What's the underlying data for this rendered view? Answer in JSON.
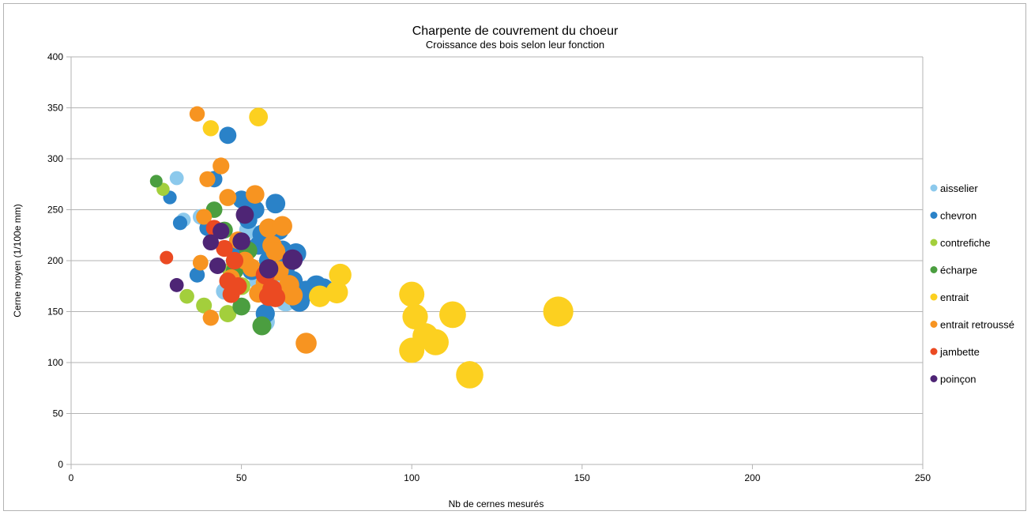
{
  "chart_data": {
    "type": "scatter",
    "title": "Charpente de couvrement du choeur",
    "subtitle": "Croissance des bois selon leur fonction",
    "xlabel": "Nb de cernes mesurés",
    "ylabel": "Cerne moyen (1/100e mm)",
    "xlim": [
      0,
      250
    ],
    "ylim": [
      0,
      400
    ],
    "xticks": [
      "0",
      "50",
      "100",
      "150",
      "200",
      "250"
    ],
    "yticks": [
      "0",
      "50",
      "100",
      "150",
      "200",
      "250",
      "300",
      "350",
      "400"
    ],
    "grid": "horizontal",
    "legend_position": "right",
    "bubble_size_encodes": "x",
    "series": [
      {
        "name": "aisselier",
        "color": "#8cc9ec",
        "points": [
          [
            31,
            281
          ],
          [
            33,
            240
          ],
          [
            38,
            243
          ],
          [
            45,
            170
          ],
          [
            48,
            195
          ],
          [
            52,
            230
          ],
          [
            55,
            180
          ],
          [
            57,
            140
          ],
          [
            60,
            175
          ],
          [
            63,
            160
          ]
        ]
      },
      {
        "name": "chevron",
        "color": "#2a82c8",
        "points": [
          [
            29,
            262
          ],
          [
            32,
            237
          ],
          [
            37,
            186
          ],
          [
            40,
            232
          ],
          [
            42,
            280
          ],
          [
            46,
            323
          ],
          [
            48,
            213
          ],
          [
            50,
            260
          ],
          [
            52,
            240
          ],
          [
            53,
            190
          ],
          [
            55,
            215
          ],
          [
            57,
            148
          ],
          [
            58,
            175
          ],
          [
            60,
            256
          ],
          [
            61,
            230
          ],
          [
            62,
            210
          ],
          [
            63,
            195
          ],
          [
            65,
            180
          ],
          [
            66,
            207
          ],
          [
            67,
            160
          ],
          [
            69,
            170
          ],
          [
            72,
            175
          ],
          [
            74,
            172
          ],
          [
            58,
            200
          ],
          [
            56,
            226
          ],
          [
            54,
            250
          ]
        ]
      },
      {
        "name": "contrefiche",
        "color": "#a3cf3c",
        "points": [
          [
            27,
            270
          ],
          [
            34,
            165
          ],
          [
            39,
            156
          ],
          [
            46,
            148
          ],
          [
            50,
            175
          ],
          [
            47,
            190
          ]
        ]
      },
      {
        "name": "écharpe",
        "color": "#4b9e40",
        "points": [
          [
            25,
            278
          ],
          [
            42,
            250
          ],
          [
            45,
            230
          ],
          [
            48,
            190
          ],
          [
            50,
            155
          ],
          [
            56,
            136
          ],
          [
            52,
            210
          ]
        ]
      },
      {
        "name": "entrait",
        "color": "#fcd020",
        "points": [
          [
            41,
            330
          ],
          [
            55,
            341
          ],
          [
            73,
            165
          ],
          [
            78,
            169
          ],
          [
            79,
            186
          ],
          [
            100,
            167
          ],
          [
            101,
            145
          ],
          [
            100,
            112
          ],
          [
            104,
            126
          ],
          [
            107,
            120
          ],
          [
            112,
            147
          ],
          [
            117,
            88
          ],
          [
            143,
            150
          ]
        ]
      },
      {
        "name": "entrait retroussé",
        "color": "#f79421",
        "points": [
          [
            37,
            344
          ],
          [
            38,
            198
          ],
          [
            40,
            280
          ],
          [
            41,
            144
          ],
          [
            44,
            293
          ],
          [
            46,
            262
          ],
          [
            47,
            183
          ],
          [
            49,
            220
          ],
          [
            51,
            200
          ],
          [
            53,
            193
          ],
          [
            54,
            265
          ],
          [
            55,
            168
          ],
          [
            57,
            178
          ],
          [
            58,
            232
          ],
          [
            59,
            215
          ],
          [
            60,
            209
          ],
          [
            61,
            190
          ],
          [
            62,
            234
          ],
          [
            64,
            176
          ],
          [
            65,
            166
          ],
          [
            69,
            119
          ],
          [
            39,
            243
          ]
        ]
      },
      {
        "name": "jambette",
        "color": "#eb4a22",
        "points": [
          [
            28,
            203
          ],
          [
            42,
            232
          ],
          [
            45,
            212
          ],
          [
            46,
            180
          ],
          [
            47,
            167
          ],
          [
            48,
            200
          ],
          [
            49,
            175
          ],
          [
            57,
            186
          ],
          [
            58,
            165
          ],
          [
            59,
            172
          ],
          [
            60,
            164
          ]
        ]
      },
      {
        "name": "poinçon",
        "color": "#4e2575",
        "points": [
          [
            31,
            176
          ],
          [
            41,
            218
          ],
          [
            43,
            195
          ],
          [
            44,
            229
          ],
          [
            50,
            219
          ],
          [
            51,
            245
          ],
          [
            58,
            192
          ],
          [
            65,
            201
          ]
        ]
      }
    ]
  }
}
